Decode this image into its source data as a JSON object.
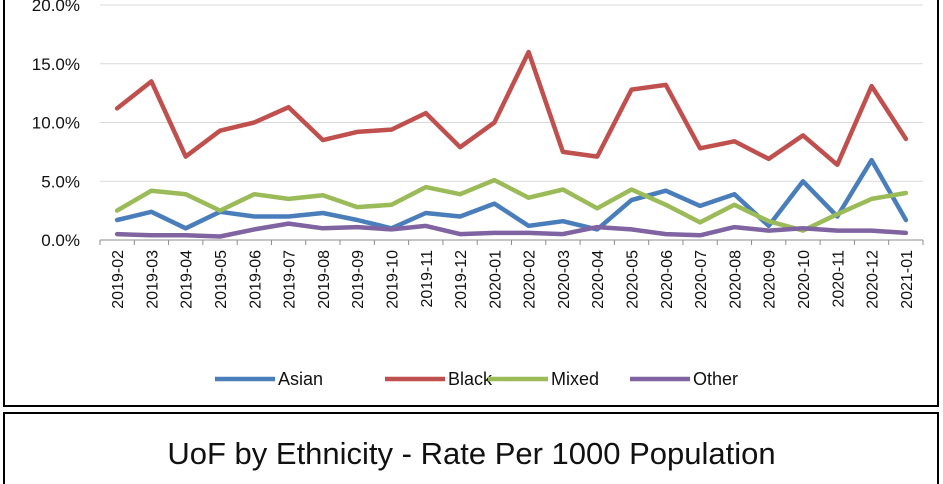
{
  "caption": "UoF by Ethnicity - Rate Per 1000 Population",
  "chart_data": {
    "type": "line",
    "title": "",
    "xlabel": "",
    "ylabel": "",
    "ylim": [
      0,
      20
    ],
    "y_ticks": [
      "0.0%",
      "5.0%",
      "10.0%",
      "15.0%",
      "20.0%"
    ],
    "y_tick_values": [
      0,
      5,
      10,
      15,
      20
    ],
    "grid": "horizontal",
    "legend_position": "bottom",
    "categories": [
      "2019-02",
      "2019-03",
      "2019-04",
      "2019-05",
      "2019-06",
      "2019-07",
      "2019-08",
      "2019-09",
      "2019-10",
      "2019-11",
      "2019-12",
      "2020-01",
      "2020-02",
      "2020-03",
      "2020-04",
      "2020-05",
      "2020-06",
      "2020-07",
      "2020-08",
      "2020-09",
      "2020-10",
      "2020-11",
      "2020-12",
      "2021-01"
    ],
    "series": [
      {
        "name": "Asian",
        "color": "#4a7ebb",
        "values": [
          1.7,
          2.4,
          1.0,
          2.4,
          2.0,
          2.0,
          2.3,
          1.7,
          1.0,
          2.3,
          2.0,
          3.1,
          1.2,
          1.6,
          0.9,
          3.4,
          4.2,
          2.9,
          3.9,
          1.2,
          5.0,
          2.0,
          6.8,
          1.7
        ]
      },
      {
        "name": "Black",
        "color": "#c0504d",
        "values": [
          11.2,
          13.5,
          7.1,
          9.3,
          10.0,
          11.3,
          8.5,
          9.2,
          9.4,
          10.8,
          7.9,
          10.0,
          16.0,
          7.5,
          7.1,
          12.8,
          13.2,
          7.8,
          8.4,
          6.9,
          8.9,
          6.4,
          13.1,
          8.6
        ]
      },
      {
        "name": "Mixed",
        "color": "#9bbb59",
        "values": [
          2.5,
          4.2,
          3.9,
          2.5,
          3.9,
          3.5,
          3.8,
          2.8,
          3.0,
          4.5,
          3.9,
          5.1,
          3.6,
          4.3,
          2.7,
          4.3,
          3.0,
          1.5,
          3.0,
          1.6,
          0.8,
          2.2,
          3.5,
          4.0
        ]
      },
      {
        "name": "Other",
        "color": "#8064a2",
        "values": [
          0.5,
          0.4,
          0.4,
          0.3,
          0.9,
          1.4,
          1.0,
          1.1,
          0.9,
          1.2,
          0.5,
          0.6,
          0.6,
          0.5,
          1.1,
          0.9,
          0.5,
          0.4,
          1.1,
          0.8,
          1.0,
          0.8,
          0.8,
          0.6
        ]
      }
    ]
  }
}
